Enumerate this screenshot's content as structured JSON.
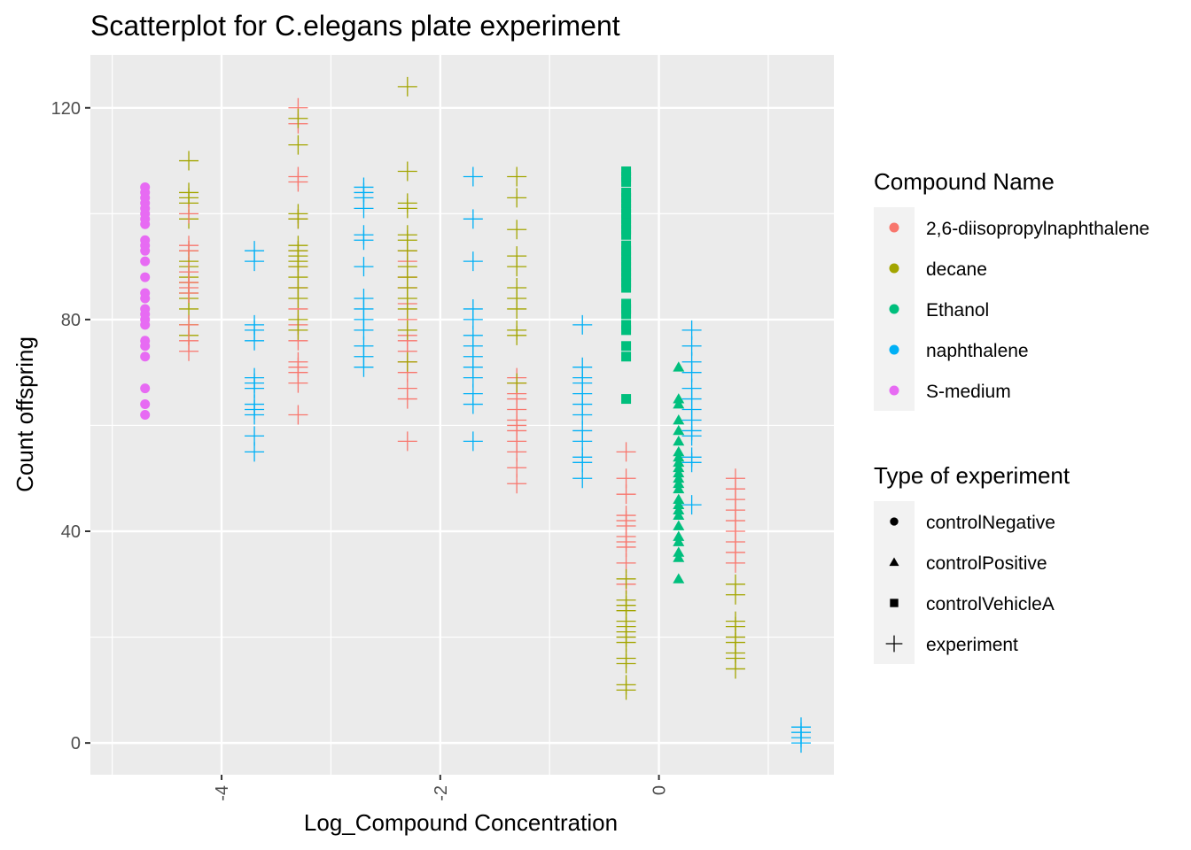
{
  "chart_data": {
    "type": "scatter",
    "title": "Scatterplot for C.elegans plate experiment",
    "xlabel": "Log_Compound Concentration",
    "ylabel": "Count offspring",
    "xlim": [
      -5.2,
      1.6
    ],
    "ylim": [
      -6,
      130
    ],
    "x_ticks": [
      -4,
      -2,
      0
    ],
    "x_tick_labels": [
      "-4",
      "-2",
      "0"
    ],
    "y_ticks": [
      0,
      40,
      80,
      120
    ],
    "y_tick_labels": [
      "0",
      "40",
      "80",
      "120"
    ],
    "grid": true,
    "legend_placement": "right",
    "colors": {
      "2,6-diisopropylnaphthalene": "#F8766D",
      "decane": "#A3A500",
      "Ethanol": "#00BF7D",
      "naphthalene": "#00B0F6",
      "S-medium": "#E76BF3",
      "panel": "#EBEBEB",
      "grid": "#FFFFFF",
      "legend_key": "#F2F2F2"
    },
    "legend_color": {
      "title": "Compound Name",
      "items": [
        "2,6-diisopropylnaphthalene",
        "decane",
        "Ethanol",
        "naphthalene",
        "S-medium"
      ]
    },
    "legend_shape": {
      "title": "Type of experiment",
      "items": [
        {
          "label": "controlNegative",
          "shape": "circle"
        },
        {
          "label": "controlPositive",
          "shape": "triangle"
        },
        {
          "label": "controlVehicleA",
          "shape": "square"
        },
        {
          "label": "experiment",
          "shape": "plus"
        }
      ]
    },
    "groups": [
      {
        "compound": "S-medium",
        "type": "controlNegative",
        "x": -4.7,
        "y": [
          62,
          64,
          67,
          73,
          75,
          76,
          79,
          80,
          81,
          82,
          84,
          85,
          88,
          91,
          93,
          94,
          95,
          98,
          99,
          100,
          101,
          102,
          103,
          104,
          105
        ]
      },
      {
        "compound": "decane",
        "type": "experiment",
        "x": -4.3,
        "y": [
          77,
          79,
          82,
          84,
          85,
          87,
          88,
          90,
          91,
          93,
          99,
          102,
          103,
          104,
          110
        ]
      },
      {
        "compound": "2,6-diisopropylnaphthalene",
        "type": "experiment",
        "x": -4.3,
        "y": [
          74,
          76,
          79,
          85,
          86,
          87,
          89,
          93,
          94,
          100
        ]
      },
      {
        "compound": "naphthalene",
        "type": "experiment",
        "x": -3.7,
        "y": [
          55,
          58,
          62,
          63,
          64,
          67,
          68,
          69,
          76,
          78,
          79,
          91,
          93
        ]
      },
      {
        "compound": "2,6-diisopropylnaphthalene",
        "type": "experiment",
        "x": -3.3,
        "y": [
          62,
          68,
          70,
          71,
          72,
          76,
          79,
          82,
          86,
          90,
          93,
          99,
          106,
          107,
          117,
          120
        ]
      },
      {
        "compound": "decane",
        "type": "experiment",
        "x": -3.3,
        "y": [
          78,
          80,
          84,
          86,
          88,
          90,
          91,
          92,
          93,
          94,
          99,
          100,
          113,
          118
        ]
      },
      {
        "compound": "naphthalene",
        "type": "experiment",
        "x": -2.7,
        "y": [
          71,
          73,
          75,
          78,
          80,
          82,
          84,
          90,
          95,
          96,
          101,
          103,
          104,
          105
        ]
      },
      {
        "compound": "2,6-diisopropylnaphthalene",
        "type": "experiment",
        "x": -2.3,
        "y": [
          57,
          65,
          67,
          70,
          72,
          74,
          76,
          77,
          80,
          83,
          86,
          88,
          91,
          93
        ]
      },
      {
        "compound": "decane",
        "type": "experiment",
        "x": -2.3,
        "y": [
          72,
          78,
          82,
          84,
          86,
          88,
          90,
          93,
          95,
          96,
          101,
          102,
          108,
          124
        ]
      },
      {
        "compound": "naphthalene",
        "type": "experiment",
        "x": -1.7,
        "y": [
          57,
          64,
          66,
          69,
          71,
          73,
          75,
          77,
          80,
          82,
          91,
          99,
          107
        ]
      },
      {
        "compound": "2,6-diisopropylnaphthalene",
        "type": "experiment",
        "x": -1.3,
        "y": [
          49,
          52,
          55,
          57,
          59,
          60,
          61,
          63,
          65,
          66,
          68,
          69
        ]
      },
      {
        "compound": "decane",
        "type": "experiment",
        "x": -1.3,
        "y": [
          68,
          77,
          78,
          82,
          84,
          86,
          90,
          92,
          97,
          103,
          107
        ]
      },
      {
        "compound": "naphthalene",
        "type": "experiment",
        "x": -0.7,
        "y": [
          50,
          53,
          54,
          57,
          59,
          62,
          64,
          66,
          68,
          69,
          71,
          79
        ]
      },
      {
        "compound": "Ethanol",
        "type": "controlVehicleA",
        "x": -0.3,
        "y": [
          65,
          73,
          75,
          78,
          79,
          81,
          82,
          83,
          86,
          87,
          88,
          89,
          90,
          91,
          92,
          93,
          94,
          96,
          97,
          98,
          99,
          100,
          101,
          102,
          103,
          104,
          106,
          107,
          108
        ]
      },
      {
        "compound": "2,6-diisopropylnaphthalene",
        "type": "experiment",
        "x": -0.3,
        "y": [
          30,
          34,
          37,
          38,
          39,
          41,
          42,
          43,
          47,
          50,
          55
        ]
      },
      {
        "compound": "decane",
        "type": "experiment",
        "x": -0.3,
        "y": [
          10,
          11,
          15,
          16,
          19,
          20,
          21,
          22,
          23,
          25,
          26,
          27,
          31
        ]
      },
      {
        "compound": "Ethanol",
        "type": "controlPositive",
        "x": 0.18,
        "y": [
          31,
          35,
          36,
          38,
          39,
          41,
          43,
          44,
          45,
          46,
          48,
          49,
          50,
          51,
          52,
          53,
          54,
          55,
          57,
          59,
          61,
          64,
          65,
          71
        ]
      },
      {
        "compound": "naphthalene",
        "type": "experiment",
        "x": 0.3,
        "y": [
          45,
          53,
          54,
          58,
          59,
          61,
          63,
          65,
          67,
          70,
          72,
          75,
          78
        ]
      },
      {
        "compound": "2,6-diisopropylnaphthalene",
        "type": "experiment",
        "x": 0.7,
        "y": [
          34,
          36,
          38,
          40,
          42,
          44,
          46,
          48,
          50
        ]
      },
      {
        "compound": "decane",
        "type": "experiment",
        "x": 0.7,
        "y": [
          14,
          16,
          17,
          19,
          20,
          22,
          23,
          28,
          30
        ]
      },
      {
        "compound": "naphthalene",
        "type": "experiment",
        "x": 1.3,
        "y": [
          0,
          1,
          2,
          3
        ]
      }
    ]
  }
}
